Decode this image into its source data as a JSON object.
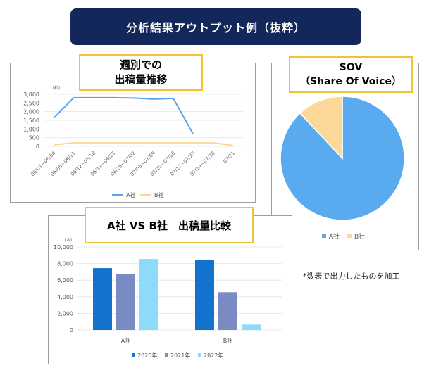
{
  "banner": {
    "title": "分析結果アウトプット例（抜粋）"
  },
  "weekly": {
    "title_line1": "週別での",
    "title_line2": "出稿量推移"
  },
  "sov": {
    "title_line1": "SOV",
    "title_line2": "（Share Of Voice）"
  },
  "compare": {
    "title": "A社 VS B社　出稿量比較"
  },
  "note": "*数表で出力したものを加工",
  "colors": {
    "banner": "#14275a",
    "label_border": "#f2c230",
    "a_line": "#5aa3ea",
    "b_line": "#fad88c",
    "pie_a": "#5aaaf0",
    "pie_b": "#fcd998",
    "bar_2020": "#1372cc",
    "bar_2021": "#7a8ac2",
    "bar_2022": "#8ddbf9"
  },
  "chart_data": [
    {
      "type": "line",
      "ylabel": "(秒)",
      "ylim": [
        0,
        3000
      ],
      "y_ticks": [
        "3,000",
        "2,500",
        "2,000",
        "1,500",
        "1,000",
        "500",
        "0"
      ],
      "categories": [
        "06/01~06/04",
        "06/05~06/11",
        "06/12~06/18",
        "06/19~06/25",
        "06/26~07/02",
        "07/03~07/09",
        "07/10~07/16",
        "07/17~07/23",
        "07/24~07/30",
        "07/31"
      ],
      "series": [
        {
          "name": "A社",
          "values": [
            1630,
            2800,
            2800,
            2800,
            2780,
            2720,
            2760,
            700,
            null,
            null
          ]
        },
        {
          "name": "B社",
          "values": [
            90,
            200,
            200,
            200,
            200,
            200,
            200,
            200,
            200,
            50
          ]
        }
      ],
      "legend": "bottom",
      "grid": true
    },
    {
      "type": "pie",
      "labels": [
        "A社",
        "B社"
      ],
      "values": [
        88,
        12
      ],
      "legend": "bottom"
    },
    {
      "type": "bar",
      "ylabel": "(本)",
      "ylim": [
        0,
        10000
      ],
      "y_ticks": [
        "10,000",
        "8,000",
        "6,000",
        "4,000",
        "2,000",
        "0"
      ],
      "categories": [
        "A社",
        "B社"
      ],
      "series": [
        {
          "name": "2020年",
          "values": [
            7450,
            8450
          ]
        },
        {
          "name": "2021年",
          "values": [
            6750,
            4550
          ]
        },
        {
          "name": "2022年",
          "values": [
            8550,
            650
          ]
        }
      ],
      "legend": "bottom",
      "grid": true
    }
  ]
}
